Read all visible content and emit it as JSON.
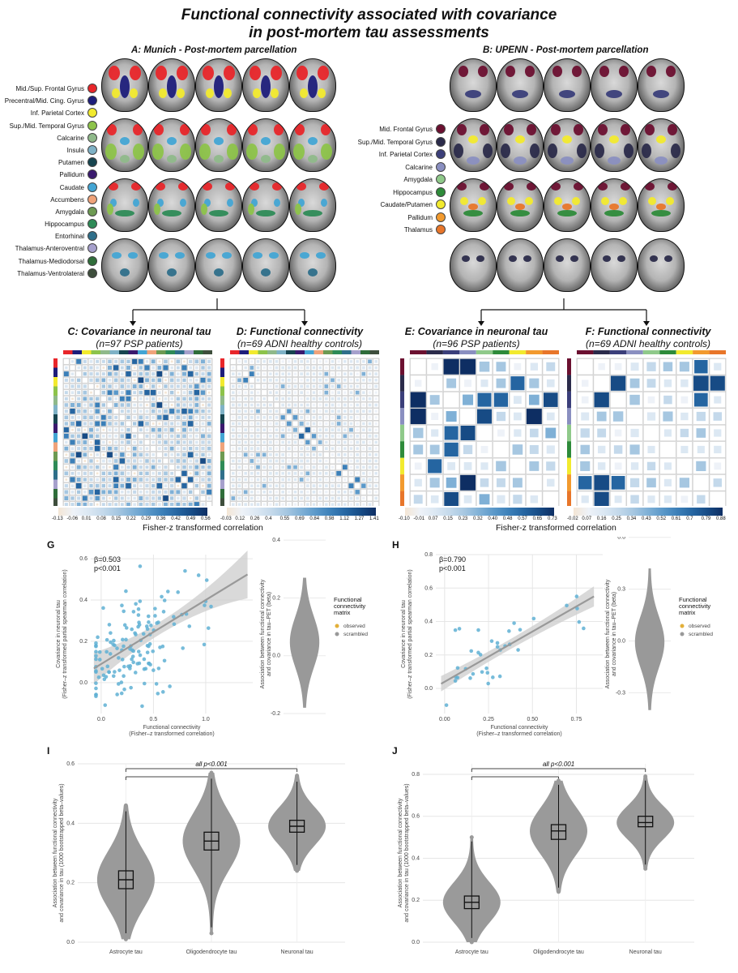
{
  "title_line1": "Functional connectivity associated with covariance",
  "title_line2": "in post-mortem tau assessments",
  "panelA": {
    "title": "A: Munich - Post-mortem parcellation",
    "legend": [
      {
        "label": "Mid./Sup. Frontal Gyrus",
        "color": "#e8262a"
      },
      {
        "label": "Precentral/Mid. Cing. Gyrus",
        "color": "#1d1d7a"
      },
      {
        "label": "Inf. Parietal Cortex",
        "color": "#f2ea2e"
      },
      {
        "label": "Sup./Mid. Temporal Gyrus",
        "color": "#8dc34a"
      },
      {
        "label": "Calcarine",
        "color": "#8fb98a"
      },
      {
        "label": "Insula",
        "color": "#7fb2c6"
      },
      {
        "label": "Putamen",
        "color": "#17454f"
      },
      {
        "label": "Pallidum",
        "color": "#3a1a6e"
      },
      {
        "label": "Caudate",
        "color": "#43a5d4"
      },
      {
        "label": "Accumbens",
        "color": "#f0a37a"
      },
      {
        "label": "Amygdala",
        "color": "#6d9a52"
      },
      {
        "label": "Hippocampus",
        "color": "#2e8b57"
      },
      {
        "label": "Entorhinal",
        "color": "#2f6f8a"
      },
      {
        "label": "Thalamus-Anteroventral",
        "color": "#a6a0cc"
      },
      {
        "label": "Thalamus-Mediodorsal",
        "color": "#2f6d3a"
      },
      {
        "label": "Thalamus-Ventrolateral",
        "color": "#3e4e3c"
      }
    ]
  },
  "panelB": {
    "title": "B: UPENN - Post-mortem parcellation",
    "legend": [
      {
        "label": "Mid. Frontal Gyrus",
        "color": "#6b1030"
      },
      {
        "label": "Sup./Mid. Temporal Gyrus",
        "color": "#2b2b4a"
      },
      {
        "label": "Inf. Parietal Cortex",
        "color": "#3b3f7a"
      },
      {
        "label": "Calcarine",
        "color": "#8a8fc0"
      },
      {
        "label": "Amygdala",
        "color": "#8fc98a"
      },
      {
        "label": "Hippocampus",
        "color": "#2e8b3a"
      },
      {
        "label": "Caudate/Putamen",
        "color": "#f2ea2e"
      },
      {
        "label": "Pallidum",
        "color": "#f29a2e"
      },
      {
        "label": "Thalamus",
        "color": "#e8762a"
      }
    ]
  },
  "panelC": {
    "title": "C: Covariance in neuronal tau",
    "subtitle": "(n=97 PSP patients)"
  },
  "panelD": {
    "title": "D: Functional connectivity",
    "subtitle": "(n=69 ADNI healthy controls)"
  },
  "panelE": {
    "title": "E: Covariance in neuronal tau",
    "subtitle": "(n=96 PSP patients)"
  },
  "panelF": {
    "title": "F: Functional connectivity",
    "subtitle": "(n=69 ADNI healthy controls)"
  },
  "cbarC": [
    "-0.13",
    "-0.06",
    "0.01",
    "0.08",
    "0.15",
    "0.22",
    "0.29",
    "0.36",
    "0.42",
    "0.49",
    "0.56"
  ],
  "cbarD": [
    "-0.03",
    "0.12",
    "0.26",
    "0.4",
    "0.55",
    "0.69",
    "0.84",
    "0.98",
    "1.12",
    "1.27",
    "1.41"
  ],
  "cbarE": [
    "-0.10",
    "-0.01",
    "0.07",
    "0.15",
    "0.23",
    "0.32",
    "0.40",
    "0.48",
    "0.57",
    "0.65",
    "0.73"
  ],
  "cbarF": [
    "-0.02",
    "0.07",
    "0.16",
    "0.25",
    "0.34",
    "0.43",
    "0.52",
    "0.61",
    "0.7",
    "0.79",
    "0.88"
  ],
  "fz_left": "Fisher-z transformed correlation",
  "fz_right": "Fisher-z transformed correlation",
  "panelG": {
    "label": "G",
    "beta": "β=0.503",
    "p": "p<0.001",
    "ylabel1": "Covariance in neuronal tau",
    "ylabel2": "(Fisher–z transformed partial spearman correlation)",
    "xlabel1": "Functional connectivity",
    "xlabel2": "(Fisher–z transformed correlation)",
    "xticks": [
      "0.0",
      "0.5",
      "1.0"
    ],
    "yticks": [
      "0.6",
      "0.4",
      "0.2",
      "0.0"
    ],
    "vylabel1": "Association between functional connectivity",
    "vylabel2": "and covariance in tau–PET (beta)",
    "vyticks": [
      "0.4",
      "0.2",
      "0.0",
      "-0.2"
    ],
    "legend_title": [
      "Functional",
      "connectivity",
      "matrix"
    ],
    "legend_items": [
      "observed",
      "scrambled"
    ]
  },
  "panelH": {
    "label": "H",
    "beta": "β=0.790",
    "p": "p<0.001",
    "ylabel1": "Covariance in neuronal tau",
    "ylabel2": "(Fisher–z transformed partial spearman correlation)",
    "xlabel1": "Functional connectivity",
    "xlabel2": "(Fisher–z transformed correlation)",
    "xticks": [
      "0.00",
      "0.25",
      "0.50",
      "0.75"
    ],
    "yticks": [
      "0.8",
      "0.6",
      "0.4",
      "0.2",
      "0.0"
    ],
    "vylabel1": "Association between functional connectivity",
    "vylabel2": "and covariance in tau–PET (beta)",
    "vyticks": [
      "0.6",
      "0.3",
      "0.0",
      "-0.3"
    ],
    "legend_title": [
      "Functional",
      "connectivity",
      "matrix"
    ],
    "legend_items": [
      "observed",
      "scrambled"
    ]
  },
  "panelI": {
    "label": "I",
    "sig": "all p<0.001",
    "ylabel1": "Association between functional connectivity",
    "ylabel2": "and covariance in tau (1000 bootstrapped beta–values)",
    "yticks": [
      "0.6",
      "0.4",
      "0.2",
      "0.0"
    ],
    "cats": [
      "Astrocyte tau",
      "Oligodendrocyte tau",
      "Neuronal tau"
    ]
  },
  "panelJ": {
    "label": "J",
    "sig": "all p<0.001",
    "ylabel1": "Association between functional connectivity",
    "ylabel2": "and covariance in tau (1000 bootstrapped beta–values)",
    "yticks": [
      "0.8",
      "0.6",
      "0.4",
      "0.2",
      "0.0"
    ],
    "cats": [
      "Astrocyte tau",
      "Oligodendrocyte tau",
      "Neuronal tau"
    ]
  },
  "chart_data": [
    {
      "type": "scatter",
      "panel": "G",
      "x_range": [
        -0.1,
        1.45
      ],
      "y_range": [
        -0.15,
        0.62
      ],
      "regression": {
        "slope": 0.31,
        "intercept": 0.09,
        "beta": 0.503
      },
      "observed_null_beta": 0.44,
      "null_beta_range": [
        -0.2,
        0.35
      ]
    },
    {
      "type": "scatter",
      "panel": "H",
      "x_range": [
        -0.05,
        0.9
      ],
      "y_range": [
        -0.15,
        0.8
      ],
      "regression": {
        "slope": 0.6,
        "intercept": 0.04,
        "beta": 0.79
      },
      "observed_null_beta": 0.63,
      "null_beta_range": [
        -0.42,
        0.5
      ]
    },
    {
      "type": "box",
      "panel": "I",
      "categories": [
        "Astrocyte tau",
        "Oligodendrocyte tau",
        "Neuronal tau"
      ],
      "median": [
        0.21,
        0.34,
        0.39
      ],
      "q1": [
        0.18,
        0.31,
        0.37
      ],
      "q3": [
        0.24,
        0.37,
        0.41
      ],
      "min": [
        0.01,
        0.03,
        0.24
      ],
      "max": [
        0.46,
        0.57,
        0.56
      ],
      "ylim": [
        0,
        0.6
      ]
    },
    {
      "type": "box",
      "panel": "J",
      "categories": [
        "Astrocyte tau",
        "Oligodendrocyte tau",
        "Neuronal tau"
      ],
      "median": [
        0.19,
        0.53,
        0.57
      ],
      "q1": [
        0.16,
        0.49,
        0.55
      ],
      "q3": [
        0.22,
        0.56,
        0.6
      ],
      "min": [
        0.0,
        0.24,
        0.35
      ],
      "max": [
        0.5,
        0.77,
        0.79
      ],
      "ylim": [
        0,
        0.85
      ]
    }
  ]
}
